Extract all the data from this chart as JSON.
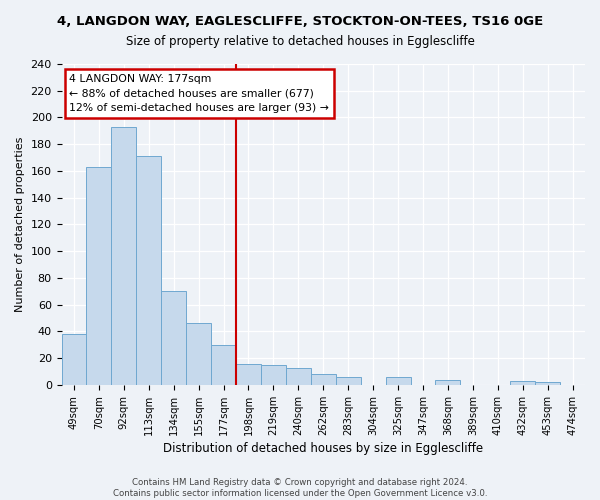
{
  "title1": "4, LANGDON WAY, EAGLESCLIFFE, STOCKTON-ON-TEES, TS16 0GE",
  "title2": "Size of property relative to detached houses in Egglescliffe",
  "xlabel": "Distribution of detached houses by size in Egglescliffe",
  "ylabel": "Number of detached properties",
  "categories": [
    "49sqm",
    "70sqm",
    "92sqm",
    "113sqm",
    "134sqm",
    "155sqm",
    "177sqm",
    "198sqm",
    "219sqm",
    "240sqm",
    "262sqm",
    "283sqm",
    "304sqm",
    "325sqm",
    "347sqm",
    "368sqm",
    "389sqm",
    "410sqm",
    "432sqm",
    "453sqm",
    "474sqm"
  ],
  "values": [
    38,
    163,
    193,
    171,
    70,
    46,
    30,
    16,
    15,
    13,
    8,
    6,
    0,
    6,
    0,
    4,
    0,
    0,
    3,
    2,
    0
  ],
  "bar_color": "#c6d9ec",
  "bar_edge_color": "#6fa8d0",
  "vline_x_idx": 6,
  "vline_color": "#cc0000",
  "ann_line1": "4 LANGDON WAY: 177sqm",
  "ann_line2": "← 88% of detached houses are smaller (677)",
  "ann_line3": "12% of semi-detached houses are larger (93) →",
  "annotation_box_color": "#ffffff",
  "annotation_box_edge_color": "#cc0000",
  "ylim": [
    0,
    240
  ],
  "yticks": [
    0,
    20,
    40,
    60,
    80,
    100,
    120,
    140,
    160,
    180,
    200,
    220,
    240
  ],
  "footer1": "Contains HM Land Registry data © Crown copyright and database right 2024.",
  "footer2": "Contains public sector information licensed under the Open Government Licence v3.0.",
  "background_color": "#eef2f7",
  "grid_color": "#ffffff",
  "title1_fontsize": 9.5,
  "title2_fontsize": 8.5
}
